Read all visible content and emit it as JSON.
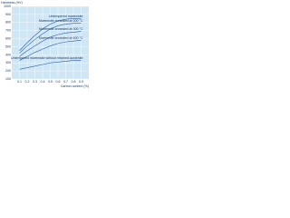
{
  "chart_data": {
    "type": "line",
    "y_label": "Hardness (HV)",
    "x_label": "Carbon content (%)",
    "x": [
      0.1,
      0.2,
      0.3,
      0.4,
      0.5,
      0.6,
      0.7,
      0.8,
      0.9
    ],
    "series": [
      {
        "name": "Untempered martensite",
        "color": "#2a5fa8",
        "values": [
          450,
          550,
          640,
          720,
          780,
          820,
          840,
          850,
          850
        ]
      },
      {
        "name": "Martensite annealed at 200 °C",
        "color": "#2a5fa8",
        "values": [
          420,
          510,
          590,
          660,
          720,
          760,
          780,
          790,
          790
        ]
      },
      {
        "name": "Martensite annealed at 300 °C",
        "color": "#2a5fa8",
        "values": [
          380,
          450,
          510,
          570,
          620,
          650,
          670,
          680,
          690
        ]
      },
      {
        "name": "Martensite annealed at 400 °C",
        "color": "#2a5fa8",
        "values": [
          330,
          380,
          430,
          470,
          510,
          540,
          560,
          570,
          580
        ]
      },
      {
        "name": "Untempered martensite without retained austenite",
        "color": "#2a5fa8",
        "values": [
          220,
          240,
          260,
          280,
          300,
          310,
          320,
          330,
          330
        ]
      }
    ],
    "xlim": [
      0,
      1.0
    ],
    "xticks": [
      0.1,
      0.2,
      0.3,
      0.4,
      0.5,
      0.6,
      0.7,
      0.8,
      0.9
    ],
    "ylim": [
      100,
      1000
    ],
    "yticks": [
      100,
      200,
      300,
      400,
      500,
      600,
      700,
      800,
      900,
      1000
    ],
    "grid": true
  }
}
